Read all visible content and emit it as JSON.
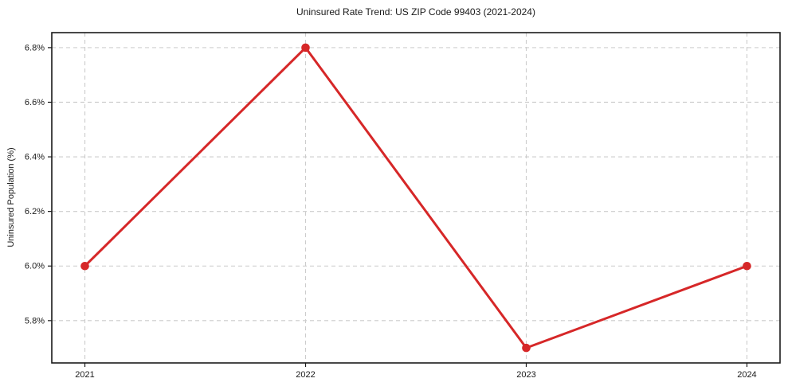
{
  "chart_data": {
    "type": "line",
    "title": "Uninsured Rate Trend: US ZIP Code 99403 (2021-2024)",
    "xlabel": "",
    "ylabel": "Uninsured Population (%)",
    "x": [
      2021,
      2022,
      2023,
      2024
    ],
    "x_tick_labels": [
      "2021",
      "2022",
      "2023",
      "2024"
    ],
    "series": [
      {
        "name": "Uninsured rate",
        "values": [
          6.0,
          6.8,
          5.7,
          6.0
        ]
      }
    ],
    "y_ticks": [
      5.8,
      6.0,
      6.2,
      6.4,
      6.6,
      6.8
    ],
    "y_tick_labels": [
      "5.8%",
      "6.0%",
      "6.2%",
      "6.4%",
      "6.6%",
      "6.8%"
    ],
    "ylim": [
      5.645,
      6.855
    ],
    "xlim": [
      2020.85,
      2024.15
    ],
    "grid": "dashed, both axes",
    "legend_position": "none",
    "marker_style": "filled-circle",
    "line_width": 3,
    "colors": {
      "line": "#d62728",
      "marker": "#d62728",
      "grid": "#cccccc",
      "axis": "#1a1a1a",
      "text": "#1a1a1a",
      "background": "#ffffff"
    }
  }
}
